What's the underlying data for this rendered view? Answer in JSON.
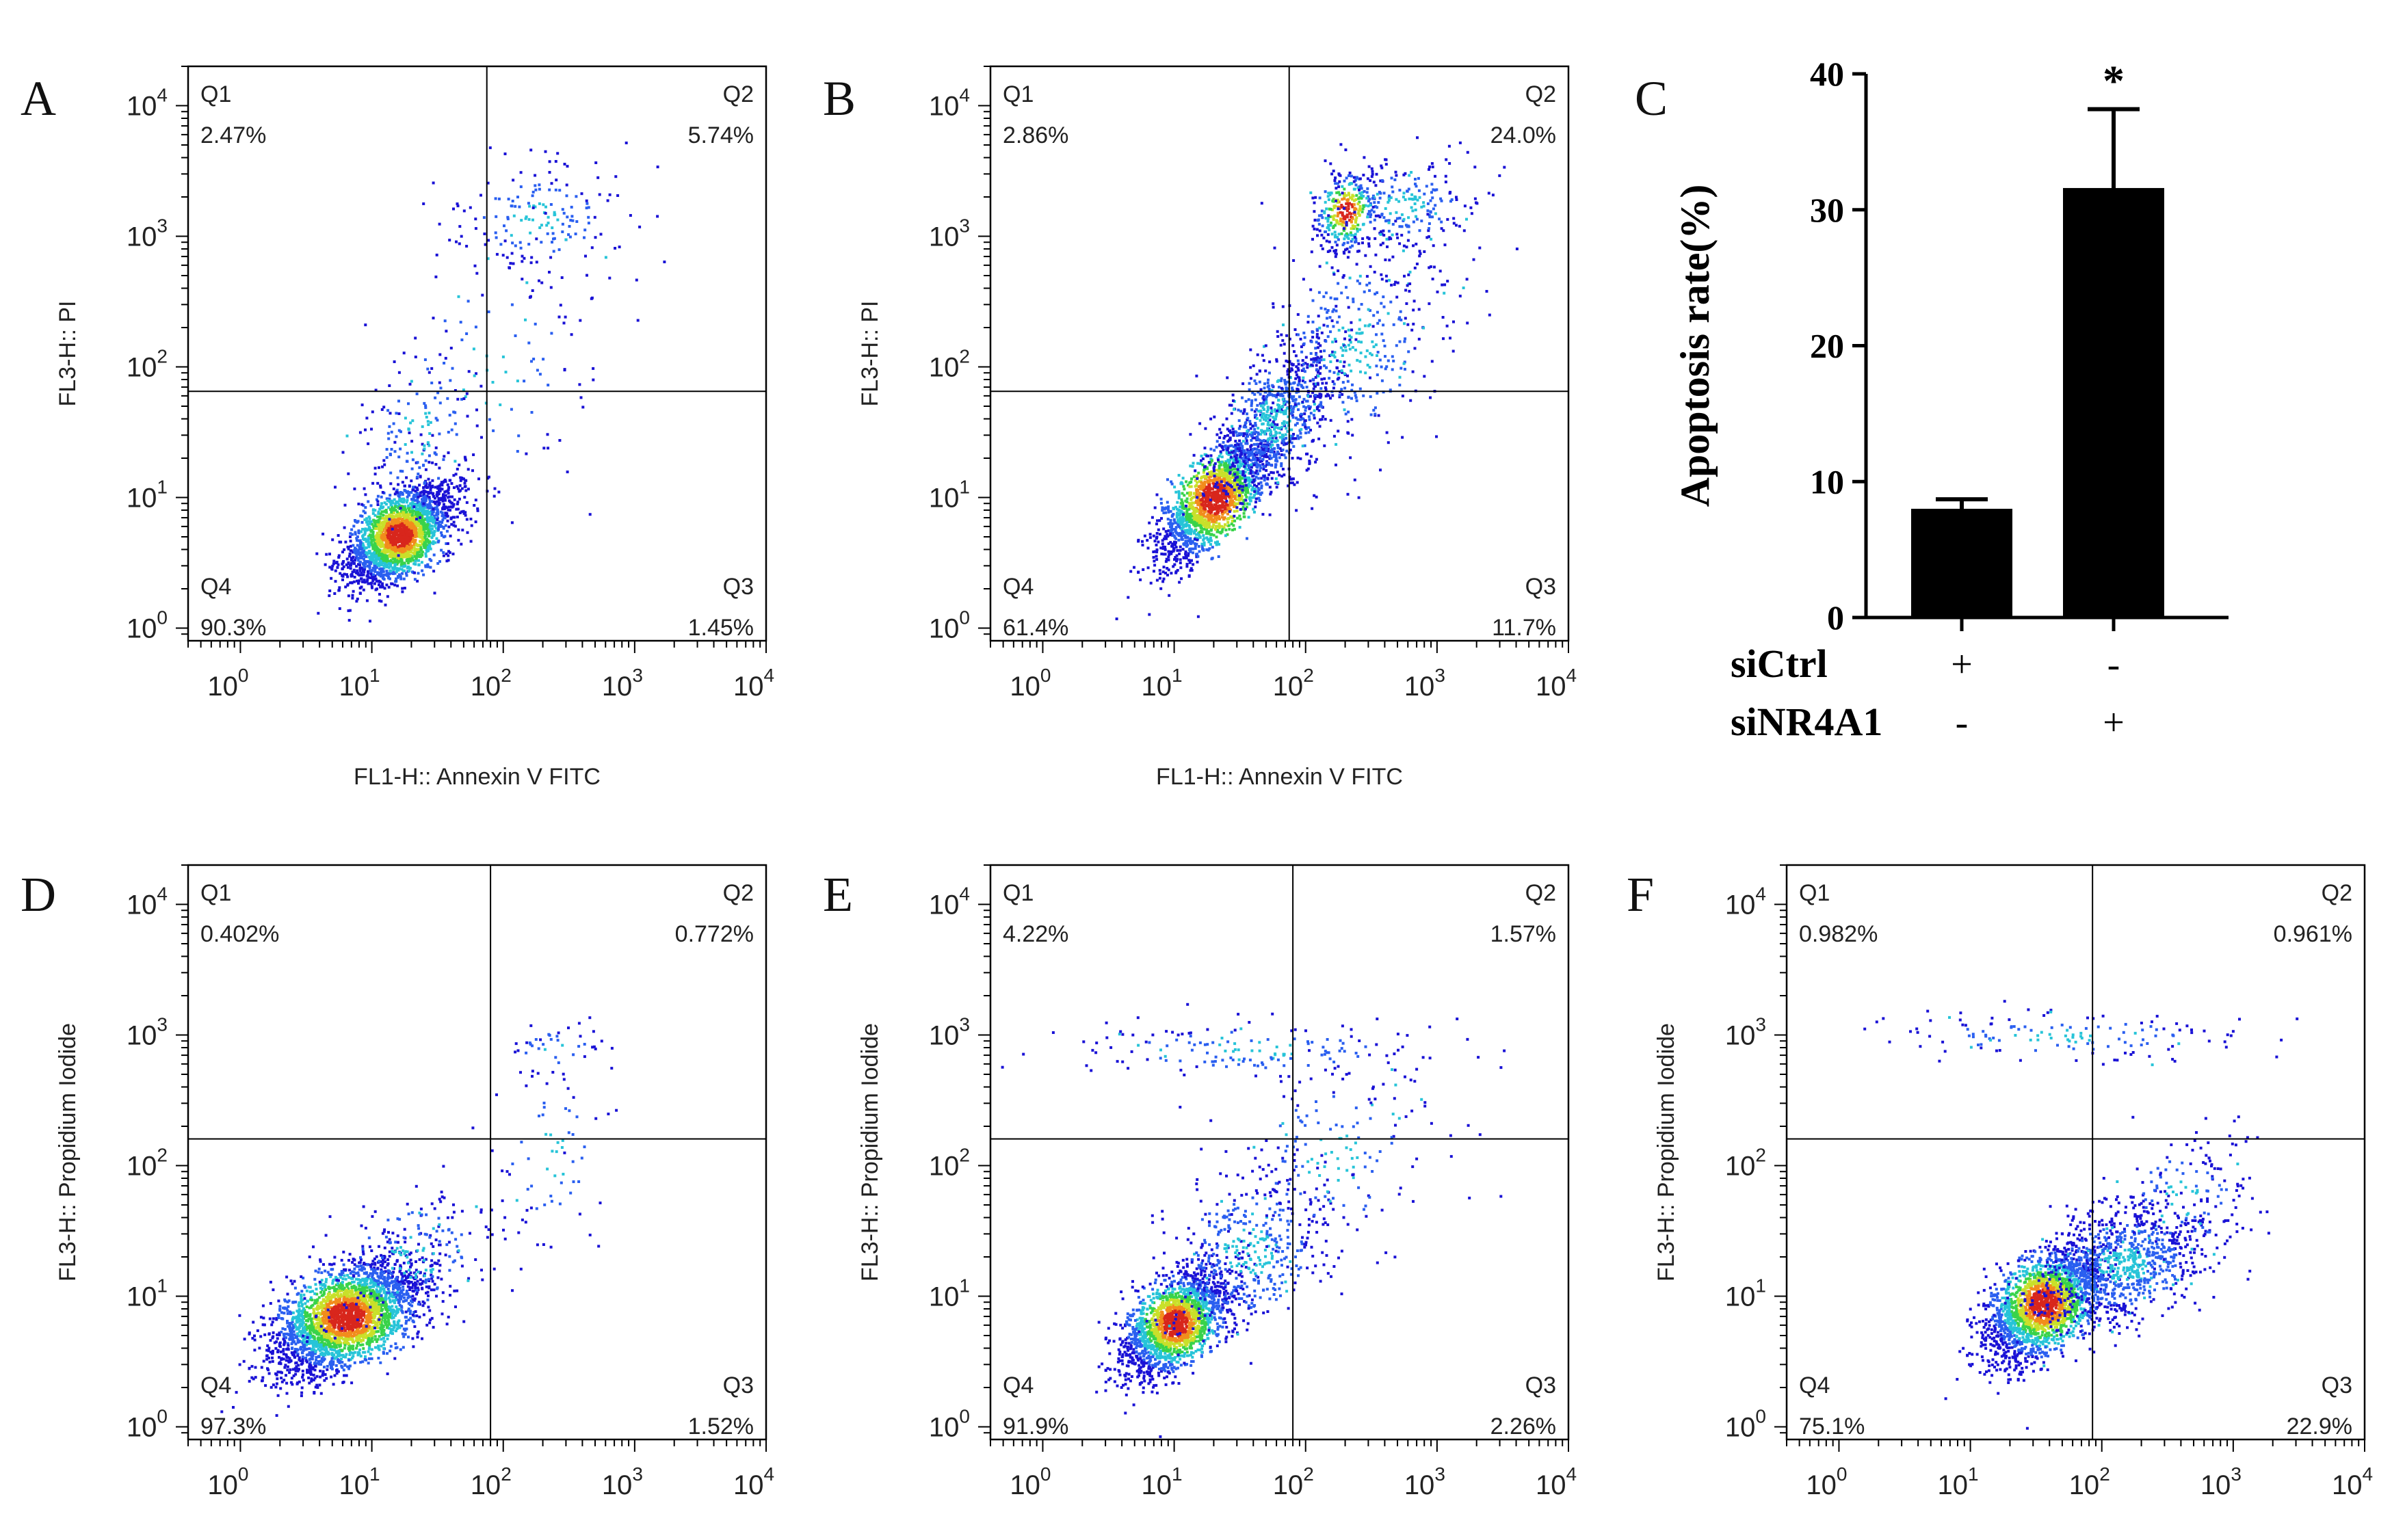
{
  "colors": {
    "density_ramp": [
      "#1a12d6",
      "#2a5ff0",
      "#27c4d8",
      "#39d34a",
      "#c9e02a",
      "#f28c1c",
      "#d8261c"
    ],
    "frame": "#000000",
    "bar_fill": "#000000"
  },
  "chart_data": [
    {
      "type": "scatter",
      "panel": "A",
      "xlabel": "FL1-H:: Annexin V FITC",
      "ylabel": "FL3-H:: PI",
      "scale": "log",
      "xlim": [
        0.4,
        10000
      ],
      "ylim": [
        0.8,
        20000
      ],
      "x_ticks": [
        {
          "base": "10",
          "exp": "0"
        },
        {
          "base": "10",
          "exp": "1"
        },
        {
          "base": "10",
          "exp": "2"
        },
        {
          "base": "10",
          "exp": "3"
        },
        {
          "base": "10",
          "exp": "4"
        }
      ],
      "y_ticks": [
        {
          "base": "10",
          "exp": "0"
        },
        {
          "base": "10",
          "exp": "1"
        },
        {
          "base": "10",
          "exp": "2"
        },
        {
          "base": "10",
          "exp": "3"
        },
        {
          "base": "10",
          "exp": "4"
        }
      ],
      "gate": {
        "x": 75,
        "y": 65
      },
      "quadrants": [
        {
          "name": "Q1",
          "value": "2.47%"
        },
        {
          "name": "Q2",
          "value": "5.74%"
        },
        {
          "name": "Q3",
          "value": "1.45%"
        },
        {
          "name": "Q4",
          "value": "90.3%"
        }
      ]
    },
    {
      "type": "scatter",
      "panel": "B",
      "xlabel": "FL1-H:: Annexin V FITC",
      "ylabel": "FL3-H:: PI",
      "scale": "log",
      "xlim": [
        0.4,
        10000
      ],
      "ylim": [
        0.8,
        20000
      ],
      "x_ticks": [
        {
          "base": "10",
          "exp": "0"
        },
        {
          "base": "10",
          "exp": "1"
        },
        {
          "base": "10",
          "exp": "2"
        },
        {
          "base": "10",
          "exp": "3"
        },
        {
          "base": "10",
          "exp": "4"
        }
      ],
      "y_ticks": [
        {
          "base": "10",
          "exp": "0"
        },
        {
          "base": "10",
          "exp": "1"
        },
        {
          "base": "10",
          "exp": "2"
        },
        {
          "base": "10",
          "exp": "3"
        },
        {
          "base": "10",
          "exp": "4"
        }
      ],
      "gate": {
        "x": 75,
        "y": 65
      },
      "quadrants": [
        {
          "name": "Q1",
          "value": "2.86%"
        },
        {
          "name": "Q2",
          "value": "24.0%"
        },
        {
          "name": "Q3",
          "value": "11.7%"
        },
        {
          "name": "Q4",
          "value": "61.4%"
        }
      ]
    },
    {
      "type": "bar",
      "panel": "C",
      "ylabel": "Apoptosis rate(%)",
      "ylim": [
        0,
        40
      ],
      "y_ticks": [
        "0",
        "10",
        "20",
        "30",
        "40"
      ],
      "groups": [
        {
          "value": 8.0,
          "error": 0.7,
          "sig": ""
        },
        {
          "value": 31.6,
          "error": 5.8,
          "sig": "*"
        }
      ],
      "conditions": [
        {
          "name": "siCtrl",
          "marks": [
            "+",
            "-"
          ]
        },
        {
          "name": "siNR4A1",
          "marks": [
            "-",
            "+"
          ]
        }
      ]
    },
    {
      "type": "scatter",
      "panel": "D",
      "xlabel": "",
      "ylabel": "FL3-H:: Propidium Iodide",
      "scale": "log",
      "xlim": [
        0.4,
        10000
      ],
      "ylim": [
        0.8,
        20000
      ],
      "x_ticks": [
        {
          "base": "10",
          "exp": "0"
        },
        {
          "base": "10",
          "exp": "1"
        },
        {
          "base": "10",
          "exp": "2"
        },
        {
          "base": "10",
          "exp": "3"
        },
        {
          "base": "10",
          "exp": "4"
        }
      ],
      "y_ticks": [
        {
          "base": "10",
          "exp": "0"
        },
        {
          "base": "10",
          "exp": "1"
        },
        {
          "base": "10",
          "exp": "2"
        },
        {
          "base": "10",
          "exp": "3"
        },
        {
          "base": "10",
          "exp": "4"
        }
      ],
      "gate": {
        "x": 80,
        "y": 160
      },
      "quadrants": [
        {
          "name": "Q1",
          "value": "0.402%"
        },
        {
          "name": "Q2",
          "value": "0.772%"
        },
        {
          "name": "Q3",
          "value": "1.52%"
        },
        {
          "name": "Q4",
          "value": "97.3%"
        }
      ]
    },
    {
      "type": "scatter",
      "panel": "E",
      "xlabel": "",
      "ylabel": "FL3-H:: Propidium Iodide",
      "scale": "log",
      "xlim": [
        0.4,
        10000
      ],
      "ylim": [
        0.8,
        20000
      ],
      "x_ticks": [
        {
          "base": "10",
          "exp": "0"
        },
        {
          "base": "10",
          "exp": "1"
        },
        {
          "base": "10",
          "exp": "2"
        },
        {
          "base": "10",
          "exp": "3"
        },
        {
          "base": "10",
          "exp": "4"
        }
      ],
      "y_ticks": [
        {
          "base": "10",
          "exp": "0"
        },
        {
          "base": "10",
          "exp": "1"
        },
        {
          "base": "10",
          "exp": "2"
        },
        {
          "base": "10",
          "exp": "3"
        },
        {
          "base": "10",
          "exp": "4"
        }
      ],
      "gate": {
        "x": 80,
        "y": 160
      },
      "quadrants": [
        {
          "name": "Q1",
          "value": "4.22%"
        },
        {
          "name": "Q2",
          "value": "1.57%"
        },
        {
          "name": "Q3",
          "value": "2.26%"
        },
        {
          "name": "Q4",
          "value": "91.9%"
        }
      ]
    },
    {
      "type": "scatter",
      "panel": "F",
      "xlabel": "",
      "ylabel": "FL3-H:: Propidium Iodide",
      "scale": "log",
      "xlim": [
        0.4,
        10000
      ],
      "ylim": [
        0.8,
        20000
      ],
      "x_ticks": [
        {
          "base": "10",
          "exp": "0"
        },
        {
          "base": "10",
          "exp": "1"
        },
        {
          "base": "10",
          "exp": "2"
        },
        {
          "base": "10",
          "exp": "3"
        },
        {
          "base": "10",
          "exp": "4"
        }
      ],
      "y_ticks": [
        {
          "base": "10",
          "exp": "0"
        },
        {
          "base": "10",
          "exp": "1"
        },
        {
          "base": "10",
          "exp": "2"
        },
        {
          "base": "10",
          "exp": "3"
        },
        {
          "base": "10",
          "exp": "4"
        }
      ],
      "gate": {
        "x": 85,
        "y": 160
      },
      "quadrants": [
        {
          "name": "Q1",
          "value": "0.982%"
        },
        {
          "name": "Q2",
          "value": "0.961%"
        },
        {
          "name": "Q3",
          "value": "22.9%"
        },
        {
          "name": "Q4",
          "value": "75.1%"
        }
      ]
    }
  ]
}
